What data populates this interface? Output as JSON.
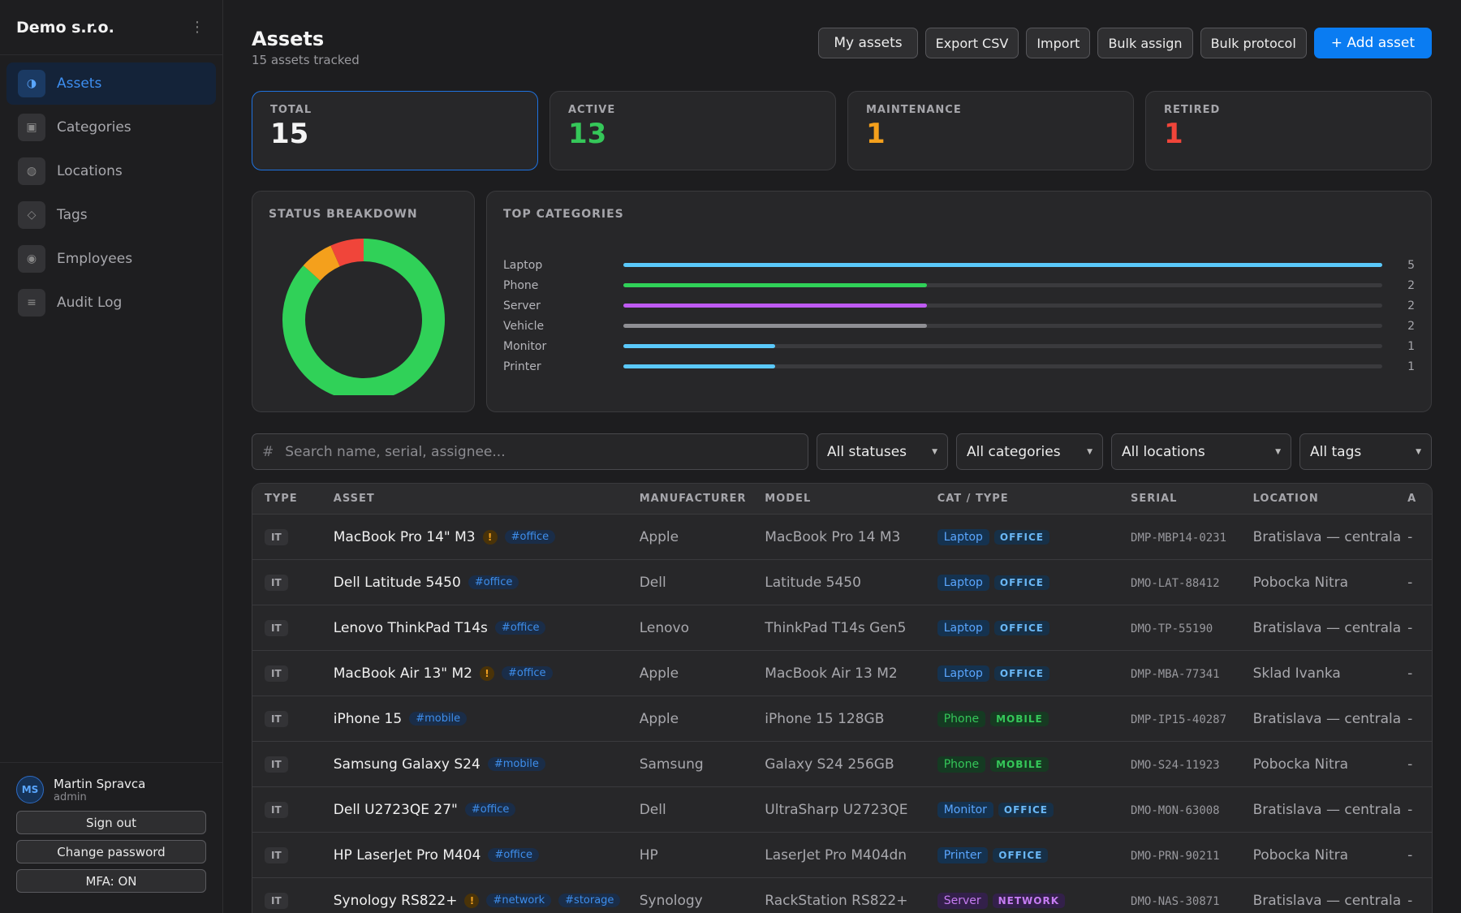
{
  "sidebar": {
    "brand": "Demo s.r.o.",
    "menu_icon": "⋮",
    "items": [
      {
        "label": "Assets",
        "icon": "assets-icon",
        "glyph": "◑",
        "active": true
      },
      {
        "label": "Categories",
        "icon": "categories-icon",
        "glyph": "▣",
        "active": false
      },
      {
        "label": "Locations",
        "icon": "locations-icon",
        "glyph": "◍",
        "active": false
      },
      {
        "label": "Tags",
        "icon": "tags-icon",
        "glyph": "◇",
        "active": false
      },
      {
        "label": "Employees",
        "icon": "employees-icon",
        "glyph": "◉",
        "active": false
      },
      {
        "label": "Audit Log",
        "icon": "audit-log-icon",
        "glyph": "≡",
        "active": false
      }
    ],
    "user": {
      "initials": "MS",
      "name": "Martin Spravca",
      "role": "admin"
    },
    "buttons": {
      "sign_out": "Sign out",
      "change_password": "Change password",
      "mfa": "MFA: ON"
    }
  },
  "header": {
    "title": "Assets",
    "subtitle": "15 assets tracked",
    "actions": {
      "my_assets": "My assets",
      "export_csv": "Export CSV",
      "import": "Import",
      "bulk_assign": "Bulk assign",
      "bulk_protocol": "Bulk protocol",
      "add_asset": "+ Add asset"
    }
  },
  "stats": [
    {
      "label": "TOTAL",
      "value": "15",
      "color": "#f4f4f4"
    },
    {
      "label": "ACTIVE",
      "value": "13",
      "color": "#35c759"
    },
    {
      "label": "MAINTENANCE",
      "value": "1",
      "color": "#f4a01c"
    },
    {
      "label": "RETIRED",
      "value": "1",
      "color": "#f0453a"
    }
  ],
  "status_breakdown": {
    "title": "STATUS BREAKDOWN",
    "segments": [
      {
        "name": "Active",
        "value": 13,
        "color": "#30d158"
      },
      {
        "name": "Maintenance",
        "value": 1,
        "color": "#f4a01c"
      },
      {
        "name": "Retired",
        "value": 1,
        "color": "#f0453a"
      }
    ]
  },
  "top_categories": {
    "title": "TOP CATEGORIES",
    "max": 5,
    "items": [
      {
        "name": "Laptop",
        "count": 5,
        "color": "#5ac8fa"
      },
      {
        "name": "Phone",
        "count": 2,
        "color": "#30d158"
      },
      {
        "name": "Server",
        "count": 2,
        "color": "#bf5af2"
      },
      {
        "name": "Vehicle",
        "count": 2,
        "color": "#8e8e93"
      },
      {
        "name": "Monitor",
        "count": 1,
        "color": "#5ac8fa"
      },
      {
        "name": "Printer",
        "count": 1,
        "color": "#5ac8fa"
      }
    ]
  },
  "filters": {
    "search_icon": "#",
    "search_placeholder": "Search name, serial, assignee...",
    "status": "All statuses",
    "category": "All categories",
    "location": "All locations",
    "tags": "All tags"
  },
  "table": {
    "columns": {
      "type": "TYPE",
      "asset": "ASSET",
      "manufacturer": "MANUFACTURER",
      "model": "MODEL",
      "cat_type": "CAT / TYPE",
      "serial": "SERIAL",
      "location": "LOCATION",
      "extra": "A"
    },
    "rows": [
      {
        "type": "IT",
        "name": "MacBook Pro 14\" M3",
        "warn": true,
        "tags": [
          "#office"
        ],
        "manufacturer": "Apple",
        "model": "MacBook Pro 14 M3",
        "category": "Laptop",
        "cat_group": "OFFICE",
        "serial": "DMP-MBP14-0231",
        "location": "Bratislava — centrala",
        "extra": "-"
      },
      {
        "type": "IT",
        "name": "Dell Latitude 5450",
        "warn": false,
        "tags": [
          "#office"
        ],
        "manufacturer": "Dell",
        "model": "Latitude 5450",
        "category": "Laptop",
        "cat_group": "OFFICE",
        "serial": "DMO-LAT-88412",
        "location": "Pobocka Nitra",
        "extra": "-"
      },
      {
        "type": "IT",
        "name": "Lenovo ThinkPad T14s",
        "warn": false,
        "tags": [
          "#office"
        ],
        "manufacturer": "Lenovo",
        "model": "ThinkPad T14s Gen5",
        "category": "Laptop",
        "cat_group": "OFFICE",
        "serial": "DMO-TP-55190",
        "location": "Bratislava — centrala",
        "extra": "-"
      },
      {
        "type": "IT",
        "name": "MacBook Air 13\" M2",
        "warn": true,
        "tags": [
          "#office"
        ],
        "manufacturer": "Apple",
        "model": "MacBook Air 13 M2",
        "category": "Laptop",
        "cat_group": "OFFICE",
        "serial": "DMP-MBA-77341",
        "location": "Sklad Ivanka",
        "extra": "-"
      },
      {
        "type": "IT",
        "name": "iPhone 15",
        "warn": false,
        "tags": [
          "#mobile"
        ],
        "manufacturer": "Apple",
        "model": "iPhone 15 128GB",
        "category": "Phone",
        "cat_group": "MOBILE",
        "serial": "DMP-IP15-40287",
        "location": "Bratislava — centrala",
        "extra": "-"
      },
      {
        "type": "IT",
        "name": "Samsung Galaxy S24",
        "warn": false,
        "tags": [
          "#mobile"
        ],
        "manufacturer": "Samsung",
        "model": "Galaxy S24 256GB",
        "category": "Phone",
        "cat_group": "MOBILE",
        "serial": "DMO-S24-11923",
        "location": "Pobocka Nitra",
        "extra": "-"
      },
      {
        "type": "IT",
        "name": "Dell U2723QE 27\"",
        "warn": false,
        "tags": [
          "#office"
        ],
        "manufacturer": "Dell",
        "model": "UltraSharp U2723QE",
        "category": "Monitor",
        "cat_group": "OFFICE",
        "serial": "DMO-MON-63008",
        "location": "Bratislava — centrala",
        "extra": "-"
      },
      {
        "type": "IT",
        "name": "HP LaserJet Pro M404",
        "warn": false,
        "tags": [
          "#office"
        ],
        "manufacturer": "HP",
        "model": "LaserJet Pro M404dn",
        "category": "Printer",
        "cat_group": "OFFICE",
        "serial": "DMO-PRN-90211",
        "location": "Pobocka Nitra",
        "extra": "-"
      },
      {
        "type": "IT",
        "name": "Synology RS822+",
        "warn": true,
        "tags": [
          "#network",
          "#storage"
        ],
        "manufacturer": "Synology",
        "model": "RackStation RS822+",
        "category": "Server",
        "cat_group": "NETWORK",
        "serial": "DMO-NAS-30871",
        "location": "Bratislava — centrala",
        "extra": "-"
      }
    ]
  },
  "colors": {
    "accent": "#0a7cf2",
    "cat_styles": {
      "Laptop": {
        "bg": "#15324f",
        "fg": "#5aa6ff"
      },
      "Phone": {
        "bg": "#153a22",
        "fg": "#35c759"
      },
      "Monitor": {
        "bg": "#15324f",
        "fg": "#5aa6ff"
      },
      "Printer": {
        "bg": "#15324f",
        "fg": "#5aa6ff"
      },
      "Server": {
        "bg": "#33204a",
        "fg": "#c67cf2"
      }
    },
    "group_styles": {
      "OFFICE": {
        "bg": "#173047",
        "fg": "#6ab7f5"
      },
      "MOBILE": {
        "bg": "#173a22",
        "fg": "#35c759"
      },
      "NETWORK": {
        "bg": "#33204a",
        "fg": "#c67cf2"
      }
    }
  }
}
